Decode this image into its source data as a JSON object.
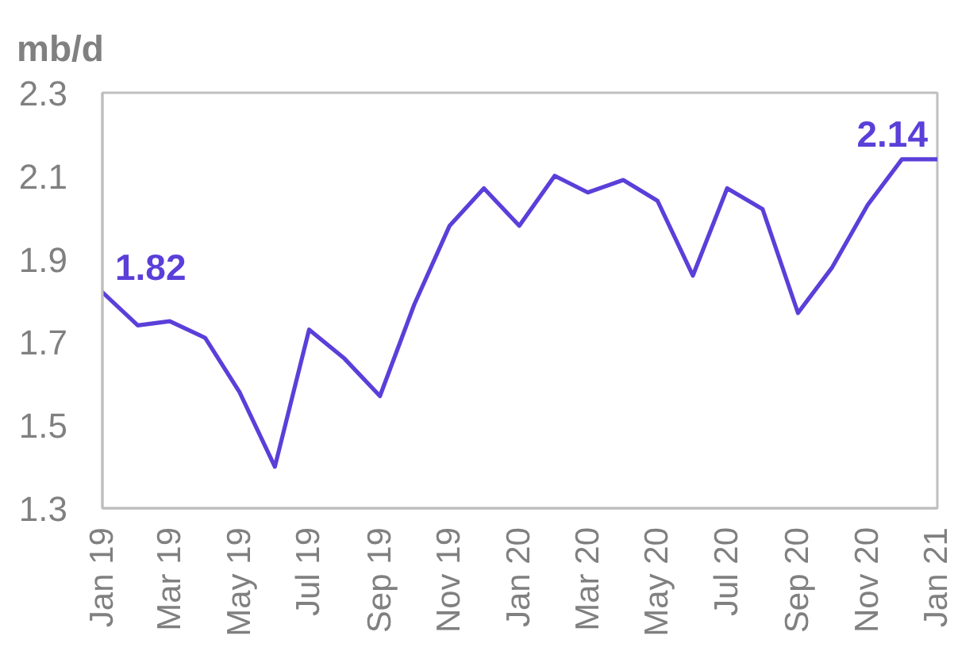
{
  "chart_data": {
    "type": "line",
    "ylabel": "mb/d",
    "x": [
      "2019-01",
      "2019-02",
      "2019-03",
      "2019-04",
      "2019-05",
      "2019-06",
      "2019-07",
      "2019-08",
      "2019-09",
      "2019-10",
      "2019-11",
      "2019-12",
      "2020-01",
      "2020-02",
      "2020-03",
      "2020-04",
      "2020-05",
      "2020-06",
      "2020-07",
      "2020-08",
      "2020-09",
      "2020-10",
      "2020-11",
      "2020-12",
      "2021-01"
    ],
    "series": [
      {
        "color": "#5b3fd9",
        "values": [
          1.82,
          1.74,
          1.75,
          1.71,
          1.58,
          1.4,
          1.73,
          1.66,
          1.57,
          1.79,
          1.98,
          2.07,
          1.98,
          2.1,
          2.06,
          2.09,
          2.04,
          1.86,
          2.07,
          2.02,
          1.77,
          1.88,
          2.03,
          2.14,
          2.14
        ],
        "value_labels": [
          "1.82",
          null,
          null,
          null,
          null,
          null,
          null,
          null,
          null,
          null,
          null,
          null,
          null,
          null,
          null,
          null,
          null,
          null,
          null,
          null,
          null,
          null,
          null,
          null,
          "2.14"
        ]
      }
    ],
    "xlim": [
      "2019-01",
      "2021-01"
    ],
    "xticks": [
      {
        "value": "2019-01",
        "label": "Jan 19"
      },
      {
        "value": "2019-03",
        "label": "Mar 19"
      },
      {
        "value": "2019-05",
        "label": "May 19"
      },
      {
        "value": "2019-07",
        "label": "Jul 19"
      },
      {
        "value": "2019-09",
        "label": "Sep 19"
      },
      {
        "value": "2019-11",
        "label": "Nov 19"
      },
      {
        "value": "2020-01",
        "label": "Jan 20"
      },
      {
        "value": "2020-03",
        "label": "Mar 20"
      },
      {
        "value": "2020-05",
        "label": "May 20"
      },
      {
        "value": "2020-07",
        "label": "Jul 20"
      },
      {
        "value": "2020-09",
        "label": "Sep 20"
      },
      {
        "value": "2020-11",
        "label": "Nov 20"
      },
      {
        "value": "2021-01",
        "label": "Jan 21"
      }
    ],
    "ylim": [
      1.3,
      2.3
    ],
    "yticks": [
      1.3,
      1.5,
      1.7,
      1.9,
      2.1,
      2.3
    ],
    "grid": false
  }
}
